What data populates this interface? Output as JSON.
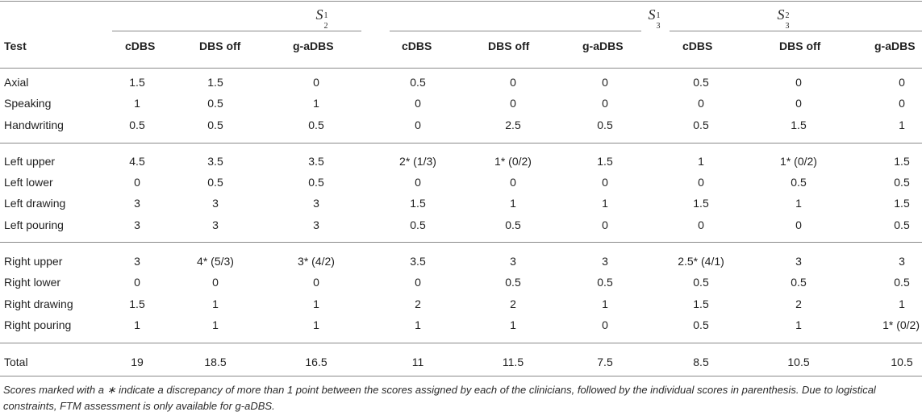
{
  "header": {
    "test_label": "Test",
    "groups": [
      {
        "symbol": "S",
        "sub": "2",
        "sup": "1"
      },
      {
        "symbol": "S",
        "sub": "3",
        "sup": "1"
      },
      {
        "symbol": "S",
        "sub": "3",
        "sup": "2"
      }
    ],
    "subcols": [
      "cDBS",
      "DBS off",
      "g-aDBS"
    ]
  },
  "rows": [
    {
      "label": "Axial",
      "values": [
        "1.5",
        "1.5",
        "0",
        "0.5",
        "0",
        "0",
        "0.5",
        "0",
        "0"
      ]
    },
    {
      "label": "Speaking",
      "values": [
        "1",
        "0.5",
        "1",
        "0",
        "0",
        "0",
        "0",
        "0",
        "0"
      ]
    },
    {
      "label": "Handwriting",
      "values": [
        "0.5",
        "0.5",
        "0.5",
        "0",
        "2.5",
        "0.5",
        "0.5",
        "1.5",
        "1"
      ]
    },
    {
      "label": "Left upper",
      "values": [
        "4.5",
        "3.5",
        "3.5",
        "2* (1/3)",
        "1* (0/2)",
        "1.5",
        "1",
        "1* (0/2)",
        "1.5"
      ]
    },
    {
      "label": "Left lower",
      "values": [
        "0",
        "0.5",
        "0.5",
        "0",
        "0",
        "0",
        "0",
        "0.5",
        "0.5"
      ]
    },
    {
      "label": "Left drawing",
      "values": [
        "3",
        "3",
        "3",
        "1.5",
        "1",
        "1",
        "1.5",
        "1",
        "1.5"
      ]
    },
    {
      "label": "Left pouring",
      "values": [
        "3",
        "3",
        "3",
        "0.5",
        "0.5",
        "0",
        "0",
        "0",
        "0.5"
      ]
    },
    {
      "label": "Right upper",
      "values": [
        "3",
        "4* (5/3)",
        "3* (4/2)",
        "3.5",
        "3",
        "3",
        "2.5* (4/1)",
        "3",
        "3"
      ]
    },
    {
      "label": "Right lower",
      "values": [
        "0",
        "0",
        "0",
        "0",
        "0.5",
        "0.5",
        "0.5",
        "0.5",
        "0.5"
      ]
    },
    {
      "label": "Right drawing",
      "values": [
        "1.5",
        "1",
        "1",
        "2",
        "2",
        "1",
        "1.5",
        "2",
        "1"
      ]
    },
    {
      "label": "Right pouring",
      "values": [
        "1",
        "1",
        "1",
        "1",
        "1",
        "0",
        "0.5",
        "1",
        "1* (0/2)"
      ]
    },
    {
      "label": "Total",
      "values": [
        "19",
        "18.5",
        "16.5",
        "11",
        "11.5",
        "7.5",
        "8.5",
        "10.5",
        "10.5"
      ]
    }
  ],
  "footnote": "Scores marked with a ∗ indicate a discrepancy of more than 1 point between the scores assigned by each of the clinicians, followed by the individual scores in parenthesis. Due to logistical constraints, FTM assessment is only available for g-aDBS."
}
